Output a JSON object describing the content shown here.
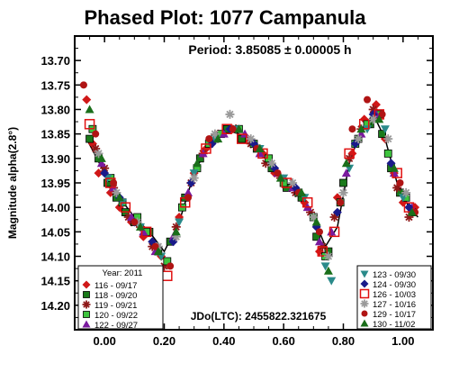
{
  "chart_data": {
    "type": "scatter",
    "title": "Phased Plot: 1077 Campanula",
    "period_text": "Period: 3.85085 ± 0.00005 h",
    "ylabel": "Magnitude alpha(2.8°)",
    "xlabel": "",
    "epoch_text": "JDo(LTC): 2455822.321675",
    "xlim": [
      -0.1,
      1.1
    ],
    "ylim": [
      14.25,
      13.65
    ],
    "y_inverted": true,
    "grid": false,
    "xticks": [
      "0.00",
      "0.20",
      "0.40",
      "0.60",
      "0.80",
      "1.00"
    ],
    "yticks": [
      "13.70",
      "13.75",
      "13.80",
      "13.85",
      "13.90",
      "13.95",
      "14.00",
      "14.05",
      "14.10",
      "14.15",
      "14.20"
    ],
    "legend_left": {
      "header": "Year: 2011",
      "placement": "bottom-left",
      "entries": [
        "116 - 09/17",
        "118 - 09/20",
        "119 - 09/21",
        "120 - 09/22",
        "122 - 09/27"
      ]
    },
    "legend_right": {
      "placement": "bottom-right",
      "entries": [
        "123 - 09/30",
        "124 - 09/30",
        "126 - 10/03",
        "127 - 10/16",
        "129 - 10/17",
        "130 - 11/02"
      ]
    },
    "series": [
      {
        "name": "116 - 09/17",
        "color": "#d01818",
        "marker": "diamond",
        "x": [
          -0.06,
          -0.04,
          -0.02,
          0.02,
          0.05,
          0.09,
          0.13,
          0.19,
          0.25,
          0.3,
          0.34,
          0.38,
          0.43,
          0.48,
          0.53,
          0.57,
          0.62,
          0.67,
          0.72,
          0.78,
          0.83,
          0.87,
          0.91,
          0.94,
          0.97,
          1.0,
          1.04
        ],
        "y": [
          13.78,
          13.87,
          13.93,
          13.97,
          14.0,
          14.03,
          14.06,
          14.1,
          14.02,
          13.93,
          13.88,
          13.85,
          13.84,
          13.86,
          13.89,
          13.93,
          13.96,
          13.99,
          14.09,
          13.98,
          13.89,
          13.82,
          13.79,
          13.86,
          13.93,
          13.99,
          14.0
        ]
      },
      {
        "name": "118 - 09/20",
        "color": "#1a7a1a",
        "marker": "square",
        "x": [
          -0.05,
          -0.02,
          0.01,
          0.04,
          0.07,
          0.1,
          0.15,
          0.18,
          0.22,
          0.27,
          0.32,
          0.37,
          0.41,
          0.46,
          0.51,
          0.56,
          0.61,
          0.66,
          0.71,
          0.75,
          0.8,
          0.85,
          0.89,
          0.93,
          0.96,
          0.99,
          1.03
        ],
        "y": [
          13.86,
          13.9,
          13.95,
          13.98,
          14.01,
          14.03,
          14.05,
          14.09,
          14.07,
          13.98,
          13.9,
          13.86,
          13.84,
          13.86,
          13.88,
          13.92,
          13.96,
          13.98,
          14.06,
          14.09,
          13.95,
          13.86,
          13.83,
          13.85,
          13.92,
          13.97,
          14.01
        ]
      },
      {
        "name": "119 - 09/21",
        "color": "#8e1818",
        "marker": "star",
        "x": [
          -0.03,
          0.0,
          0.03,
          0.08,
          0.12,
          0.16,
          0.2,
          0.24,
          0.29,
          0.33,
          0.36,
          0.44,
          0.49,
          0.54,
          0.59,
          0.64,
          0.69,
          0.73,
          0.77,
          0.82,
          0.86,
          0.9,
          0.98,
          1.02
        ],
        "y": [
          13.88,
          13.92,
          13.96,
          14.02,
          14.04,
          14.08,
          14.12,
          14.04,
          13.95,
          13.89,
          13.86,
          13.84,
          13.87,
          13.91,
          13.94,
          13.97,
          14.01,
          14.08,
          14.02,
          13.9,
          13.84,
          13.8,
          13.96,
          14.02
        ]
      },
      {
        "name": "120 - 09/22",
        "color": "#3ec43e",
        "marker": "square",
        "x": [
          -0.04,
          0.02,
          0.06,
          0.11,
          0.14,
          0.21,
          0.26,
          0.31,
          0.35,
          0.39,
          0.45,
          0.5,
          0.55,
          0.6,
          0.65,
          0.7,
          0.74,
          0.79,
          0.84,
          0.88,
          0.92,
          0.95,
          1.01
        ],
        "y": [
          13.84,
          13.94,
          13.99,
          14.02,
          14.05,
          14.11,
          14.0,
          13.92,
          13.87,
          13.85,
          13.84,
          13.87,
          13.9,
          13.95,
          13.97,
          14.02,
          14.1,
          13.99,
          13.87,
          13.83,
          13.81,
          13.89,
          13.98
        ]
      },
      {
        "name": "122 - 09/27",
        "color": "#7a1a9e",
        "marker": "triangle",
        "x": [
          -0.01,
          0.03,
          0.09,
          0.13,
          0.17,
          0.23,
          0.28,
          0.33,
          0.4,
          0.47,
          0.52,
          0.58,
          0.63,
          0.68,
          0.72,
          0.76,
          0.81,
          0.86,
          0.91,
          0.97,
          1.03
        ],
        "y": [
          13.91,
          13.96,
          14.02,
          14.05,
          14.09,
          14.06,
          13.97,
          13.89,
          13.85,
          13.85,
          13.89,
          13.93,
          13.96,
          14.0,
          14.07,
          14.05,
          13.93,
          13.85,
          13.81,
          13.93,
          14.0
        ]
      },
      {
        "name": "123 - 09/30",
        "color": "#2a8a8a",
        "marker": "triangle-down",
        "x": [
          0.01,
          0.06,
          0.12,
          0.19,
          0.25,
          0.3,
          0.37,
          0.44,
          0.52,
          0.6,
          0.67,
          0.74,
          0.76,
          0.82,
          0.88,
          0.94,
          1.0
        ],
        "y": [
          13.94,
          13.99,
          14.04,
          14.1,
          14.03,
          13.93,
          13.86,
          13.84,
          13.88,
          13.94,
          13.98,
          14.12,
          14.15,
          13.92,
          13.84,
          13.84,
          13.98
        ]
      },
      {
        "name": "124 - 09/30",
        "color": "#1a1a8a",
        "marker": "diamond",
        "x": [
          0.0,
          0.05,
          0.1,
          0.16,
          0.23,
          0.29,
          0.36,
          0.42,
          0.5,
          0.57,
          0.64,
          0.71,
          0.78,
          0.84,
          0.9,
          0.96,
          1.02
        ],
        "y": [
          13.93,
          13.98,
          14.03,
          14.07,
          14.07,
          13.95,
          13.87,
          13.84,
          13.87,
          13.92,
          13.96,
          14.04,
          14.01,
          13.87,
          13.81,
          13.91,
          14.0
        ]
      },
      {
        "name": "126 - 10/03",
        "color": "#e01010",
        "marker": "square-outline",
        "x": [
          -0.05,
          0.02,
          0.07,
          0.14,
          0.21,
          0.27,
          0.34,
          0.41,
          0.46,
          0.53,
          0.61,
          0.68,
          0.73,
          0.77,
          0.82,
          0.87,
          0.92,
          0.98,
          1.02
        ],
        "y": [
          13.83,
          13.95,
          14.0,
          14.05,
          14.14,
          13.99,
          13.88,
          13.84,
          13.86,
          13.89,
          13.95,
          13.99,
          14.09,
          14.05,
          13.89,
          13.83,
          13.81,
          13.93,
          14.0
        ]
      },
      {
        "name": "127 - 10/16",
        "color": "#9a9a9a",
        "marker": "star",
        "x": [
          -0.02,
          0.04,
          0.11,
          0.18,
          0.24,
          0.3,
          0.37,
          0.42,
          0.49,
          0.56,
          0.63,
          0.7,
          0.75,
          0.8,
          0.85,
          0.9,
          0.95,
          1.01
        ],
        "y": [
          13.89,
          13.97,
          14.03,
          14.08,
          14.06,
          13.94,
          13.85,
          13.81,
          13.86,
          13.91,
          13.95,
          14.02,
          14.1,
          13.97,
          13.86,
          13.82,
          13.86,
          13.97
        ]
      },
      {
        "name": "129 - 10/17",
        "color": "#b01414",
        "marker": "circle",
        "x": [
          -0.07,
          -0.03,
          0.03,
          0.1,
          0.17,
          0.22,
          0.28,
          0.35,
          0.43,
          0.51,
          0.58,
          0.65,
          0.72,
          0.79,
          0.83,
          0.88,
          0.93,
          0.99,
          1.04
        ],
        "y": [
          13.75,
          13.85,
          13.95,
          14.03,
          14.08,
          14.12,
          13.98,
          13.86,
          13.84,
          13.88,
          13.93,
          13.97,
          14.05,
          13.99,
          13.84,
          13.78,
          13.81,
          13.95,
          14.01
        ]
      },
      {
        "name": "130 - 11/02",
        "color": "#1a6e1a",
        "marker": "triangle",
        "x": [
          -0.05,
          -0.01,
          0.05,
          0.12,
          0.18,
          0.24,
          0.31,
          0.38,
          0.45,
          0.52,
          0.59,
          0.66,
          0.71,
          0.75,
          0.81,
          0.86,
          0.92,
          0.97,
          1.03
        ],
        "y": [
          13.8,
          13.9,
          13.98,
          14.04,
          14.09,
          14.05,
          13.91,
          13.86,
          13.84,
          13.88,
          13.94,
          13.97,
          14.03,
          14.13,
          13.91,
          13.84,
          13.82,
          13.92,
          14.01
        ]
      }
    ],
    "fit_curve": {
      "x": [
        -0.06,
        0.0,
        0.05,
        0.1,
        0.15,
        0.2,
        0.25,
        0.3,
        0.35,
        0.4,
        0.45,
        0.5,
        0.55,
        0.6,
        0.65,
        0.7,
        0.74,
        0.78,
        0.82,
        0.86,
        0.9,
        0.94,
        0.98,
        1.02,
        1.05
      ],
      "y": [
        13.86,
        13.93,
        13.98,
        14.02,
        14.05,
        14.09,
        14.03,
        13.93,
        13.87,
        13.84,
        13.85,
        13.87,
        13.91,
        13.95,
        13.97,
        14.02,
        14.08,
        14.04,
        13.91,
        13.84,
        13.81,
        13.86,
        13.95,
        14.0,
        14.02
      ]
    }
  }
}
